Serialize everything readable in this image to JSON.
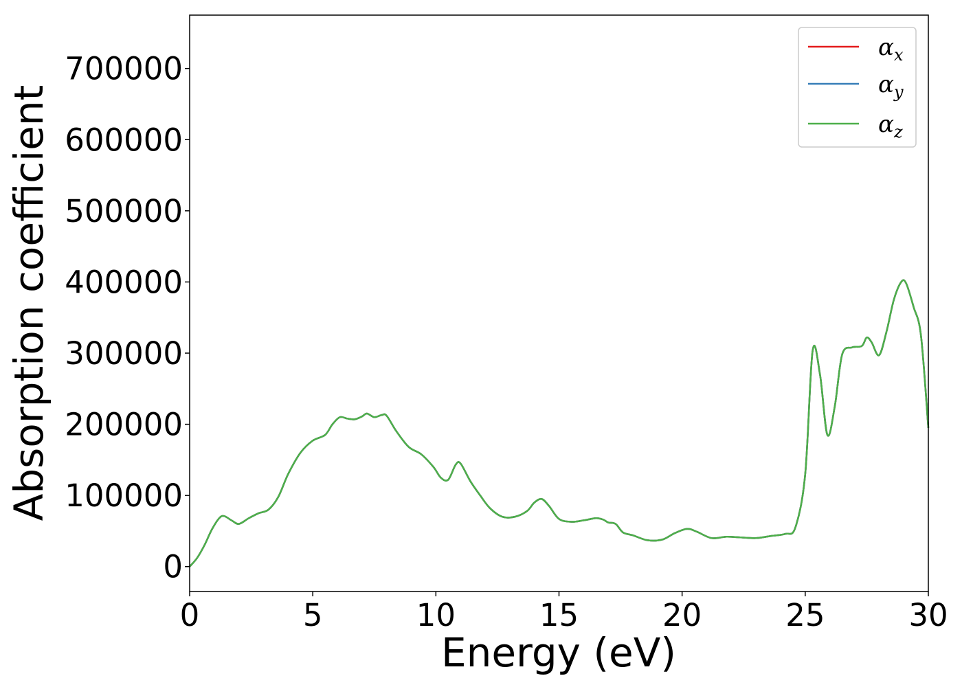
{
  "chart_data": {
    "type": "line",
    "title": "",
    "xlabel": "Energy (eV)",
    "ylabel": "Absorption coefficient",
    "xlim": [
      0,
      30
    ],
    "ylim": [
      -35000,
      775000
    ],
    "xticks": [
      "0",
      "5",
      "10",
      "15",
      "20",
      "25",
      "30"
    ],
    "yticks": [
      "0",
      "100000",
      "200000",
      "300000",
      "400000",
      "500000",
      "600000",
      "700000"
    ],
    "grid": false,
    "legend_position": "top-right",
    "x": [
      0,
      0.3,
      0.6,
      0.9,
      1.2,
      1.4,
      1.7,
      2.0,
      2.4,
      2.8,
      3.2,
      3.6,
      4.0,
      4.5,
      5.0,
      5.5,
      5.8,
      6.1,
      6.4,
      6.7,
      7.0,
      7.2,
      7.5,
      7.8,
      8.0,
      8.4,
      8.9,
      9.4,
      9.9,
      10.2,
      10.5,
      10.8,
      11.0,
      11.4,
      11.8,
      12.2,
      12.7,
      13.2,
      13.7,
      14.0,
      14.3,
      14.6,
      15.0,
      15.5,
      16.0,
      16.5,
      16.8,
      17.0,
      17.3,
      17.6,
      18.0,
      18.6,
      19.2,
      19.7,
      20.2,
      20.6,
      21.2,
      21.8,
      22.4,
      23.0,
      23.6,
      24.2,
      24.6,
      25.0,
      25.3,
      25.6,
      25.9,
      26.2,
      26.5,
      26.9,
      27.3,
      27.5,
      27.7,
      28.0,
      28.3,
      28.6,
      28.9,
      29.1,
      29.4,
      29.7,
      30.0
    ],
    "series": [
      {
        "name": "αx",
        "color": "#e41a1c",
        "values": [
          0,
          12000,
          30000,
          52000,
          68000,
          71000,
          65000,
          60000,
          68000,
          75000,
          80000,
          98000,
          130000,
          160000,
          177000,
          185000,
          200000,
          210000,
          208000,
          207000,
          211000,
          215000,
          210000,
          213000,
          212000,
          190000,
          168000,
          158000,
          140000,
          125000,
          122000,
          143000,
          145000,
          120000,
          100000,
          82000,
          70000,
          70000,
          78000,
          90000,
          95000,
          85000,
          67000,
          63000,
          65000,
          68000,
          66000,
          62000,
          60000,
          48000,
          44000,
          37000,
          38000,
          47000,
          53000,
          49000,
          40000,
          42000,
          41000,
          40000,
          43000,
          46000,
          55000,
          130000,
          303000,
          270000,
          185000,
          225000,
          298000,
          308000,
          310000,
          322000,
          315000,
          297000,
          330000,
          375000,
          400000,
          398000,
          365000,
          325000,
          195000
        ]
      },
      {
        "name": "αy",
        "color": "#377eb8",
        "values": [
          0,
          12000,
          30000,
          52000,
          68000,
          71000,
          65000,
          60000,
          68000,
          75000,
          80000,
          98000,
          130000,
          160000,
          177000,
          185000,
          200000,
          210000,
          208000,
          207000,
          211000,
          215000,
          210000,
          213000,
          212000,
          190000,
          168000,
          158000,
          140000,
          125000,
          122000,
          143000,
          145000,
          120000,
          100000,
          82000,
          70000,
          70000,
          78000,
          90000,
          95000,
          85000,
          67000,
          63000,
          65000,
          68000,
          66000,
          62000,
          60000,
          48000,
          44000,
          37000,
          38000,
          47000,
          53000,
          49000,
          40000,
          42000,
          41000,
          40000,
          43000,
          46000,
          55000,
          130000,
          303000,
          270000,
          185000,
          225000,
          298000,
          308000,
          310000,
          322000,
          315000,
          297000,
          330000,
          375000,
          400000,
          398000,
          365000,
          325000,
          195000
        ]
      },
      {
        "name": "αz",
        "color": "#4daf4a",
        "values": [
          0,
          12000,
          30000,
          52000,
          68000,
          71000,
          65000,
          60000,
          68000,
          75000,
          80000,
          98000,
          130000,
          160000,
          177000,
          185000,
          200000,
          210000,
          208000,
          207000,
          211000,
          215000,
          210000,
          213000,
          212000,
          190000,
          168000,
          158000,
          140000,
          125000,
          122000,
          143000,
          145000,
          120000,
          100000,
          82000,
          70000,
          70000,
          78000,
          90000,
          95000,
          85000,
          67000,
          63000,
          65000,
          68000,
          66000,
          62000,
          60000,
          48000,
          44000,
          37000,
          38000,
          47000,
          53000,
          49000,
          40000,
          42000,
          41000,
          40000,
          43000,
          46000,
          55000,
          130000,
          303000,
          270000,
          185000,
          225000,
          298000,
          308000,
          310000,
          322000,
          315000,
          297000,
          330000,
          375000,
          400000,
          398000,
          365000,
          325000,
          195000
        ]
      }
    ],
    "legend": [
      {
        "symbol": "α",
        "subscript": "x"
      },
      {
        "symbol": "α",
        "subscript": "y"
      },
      {
        "symbol": "α",
        "subscript": "z"
      }
    ]
  }
}
